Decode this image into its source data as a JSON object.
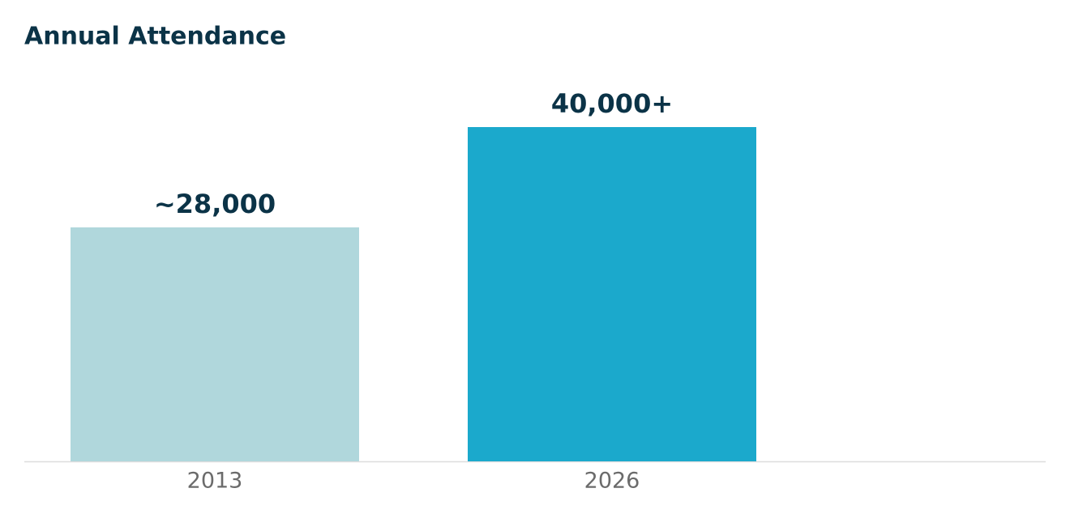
{
  "chart_data": {
    "type": "bar",
    "title": "Annual Attendance",
    "categories": [
      "2013",
      "2026"
    ],
    "values": [
      28000,
      40000
    ],
    "value_labels": [
      "~28,000",
      "40,000+"
    ],
    "colors": [
      "#b0d7dc",
      "#1ba9cc"
    ],
    "ylim": [
      0,
      40000
    ]
  }
}
